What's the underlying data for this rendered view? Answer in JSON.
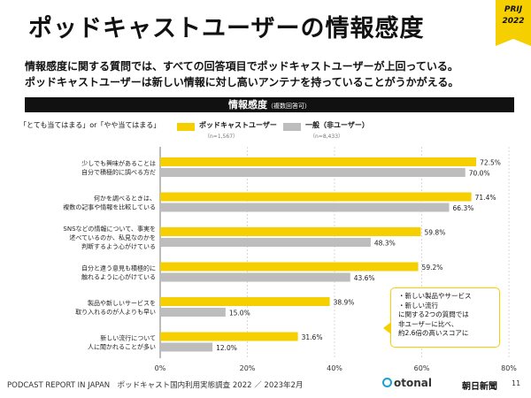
{
  "header": {
    "title": "ポッドキャストユーザーの情報感度",
    "badge_line1": "PRIJ",
    "badge_line2": "2022",
    "subtitle_line1": "情報感度に関する質問では、すべての回答項目でポッドキャストユーザーが上回っている。",
    "subtitle_line2": "ポッドキャストユーザーは新しい情報に対し高いアンテナを持っていることがうかがえる。"
  },
  "section": {
    "title": "情報感度",
    "note": "（複数回答可）"
  },
  "question_caption": "「とても当てはまる」or「やや当てはまる」",
  "legend": {
    "podcast_label": "ポッドキャストユーザー",
    "podcast_n": "（n=1,567）",
    "general_label": "一般（非ユーザー）",
    "general_n": "（n=8,433）"
  },
  "colors": {
    "podcast": "#f5cf00",
    "general": "#bdbdbd",
    "accent": "#f5cf00"
  },
  "callout": {
    "lines": [
      "・新しい製品やサービス",
      "・新しい流行",
      "に関する2つの質問では",
      "非ユーザーに比べ、",
      "約2.6倍の高いスコアに"
    ]
  },
  "footer": {
    "source": "PODCAST REPORT IN JAPAN　ポッドキャスト国内利用実態調査 2022 ／ 2023年2月",
    "logo_otonal": "otonal",
    "logo_asahi": "朝日新聞",
    "page": "11"
  },
  "chart_data": {
    "type": "bar",
    "orientation": "horizontal",
    "categories": [
      [
        "少しでも興味があることは",
        "自分で積極的に調べる方だ"
      ],
      [
        "何かを調べるときは、",
        "複数の記事や情報を比較している"
      ],
      [
        "SNSなどの情報について、事実を",
        "述べているのか、私見なのかを",
        "判断するよう心がけている"
      ],
      [
        "自分と違う意見も積極的に",
        "触れるように心がけている"
      ],
      [
        "製品や新しいサービスを",
        "取り入れるのが人よりも早い"
      ],
      [
        "新しい流行について",
        "人に聞かれることが多い"
      ]
    ],
    "series": [
      {
        "name": "ポッドキャストユーザー",
        "values": [
          72.5,
          71.4,
          59.8,
          59.2,
          38.9,
          31.6
        ],
        "color": "#f5cf00"
      },
      {
        "name": "一般（非ユーザー）",
        "values": [
          70.0,
          66.3,
          48.3,
          43.6,
          15.0,
          12.0
        ],
        "color": "#bdbdbd"
      }
    ],
    "value_labels": [
      [
        "72.5%",
        "71.4%",
        "59.8%",
        "59.2%",
        "38.9%",
        "31.6%"
      ],
      [
        "70.0%",
        "66.3%",
        "48.3%",
        "43.6%",
        "15.0%",
        "12.0%"
      ]
    ],
    "xlim": [
      0,
      80
    ],
    "xticks": [
      0,
      20,
      40,
      60,
      80
    ],
    "xtick_labels": [
      "0%",
      "20%",
      "40%",
      "60%",
      "80%"
    ],
    "grid": true,
    "legend_position": "top"
  }
}
